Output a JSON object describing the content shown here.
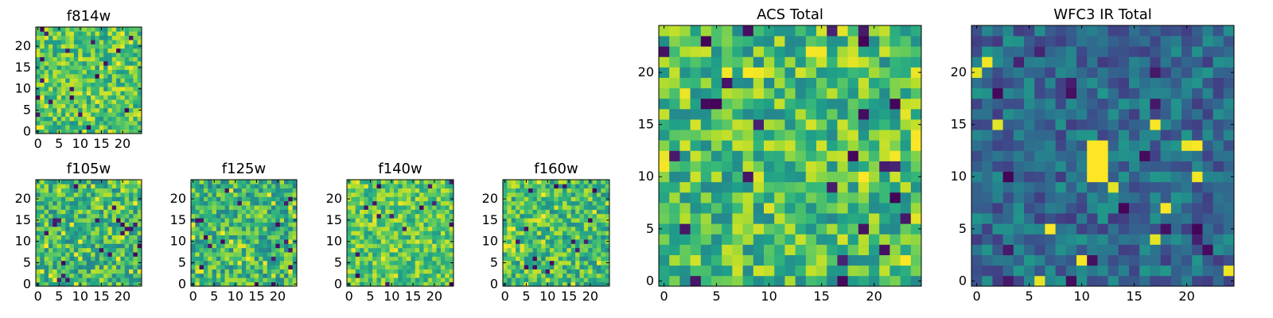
{
  "chart_data": [
    {
      "type": "heatmap",
      "title": "f814w",
      "grid_size": [
        25,
        25
      ],
      "xlim": [
        0,
        24
      ],
      "ylim": [
        0,
        24
      ],
      "xticks": [
        0,
        5,
        10,
        15,
        20
      ],
      "yticks": [
        0,
        5,
        10,
        15,
        20
      ],
      "colormap": "viridis",
      "value_range": [
        0,
        1
      ],
      "character": "fine pixel noise, mostly high (green-yellow) values with sparse dark pixels",
      "noise_seed": 11,
      "base": 0.72,
      "spread": 0.22
    },
    {
      "type": "heatmap",
      "title": "f105w",
      "grid_size": [
        25,
        25
      ],
      "xlim": [
        0,
        24
      ],
      "ylim": [
        0,
        24
      ],
      "xticks": [
        0,
        5,
        10,
        15,
        20
      ],
      "yticks": [
        0,
        5,
        10,
        15,
        20
      ],
      "colormap": "viridis",
      "value_range": [
        0,
        1
      ],
      "character": "smooth mottled noise, green-yellow with teal patches",
      "noise_seed": 23,
      "base": 0.68,
      "spread": 0.24
    },
    {
      "type": "heatmap",
      "title": "f125w",
      "grid_size": [
        25,
        25
      ],
      "xlim": [
        0,
        24
      ],
      "ylim": [
        0,
        24
      ],
      "xticks": [
        0,
        5,
        10,
        15,
        20
      ],
      "yticks": [
        0,
        5,
        10,
        15,
        20
      ],
      "colormap": "viridis",
      "value_range": [
        0,
        1
      ],
      "character": "smooth mottled noise with a dark vertical streak near x=8, y=12-17",
      "noise_seed": 37,
      "base": 0.66,
      "spread": 0.24
    },
    {
      "type": "heatmap",
      "title": "f140w",
      "grid_size": [
        25,
        25
      ],
      "xlim": [
        0,
        24
      ],
      "ylim": [
        0,
        24
      ],
      "xticks": [
        0,
        5,
        10,
        15,
        20
      ],
      "yticks": [
        0,
        5,
        10,
        15,
        20
      ],
      "colormap": "viridis",
      "value_range": [
        0,
        1
      ],
      "character": "smooth, mostly bright green-yellow with a few dark spots",
      "noise_seed": 41,
      "base": 0.74,
      "spread": 0.2
    },
    {
      "type": "heatmap",
      "title": "f160w",
      "grid_size": [
        25,
        25
      ],
      "xlim": [
        0,
        24
      ],
      "ylim": [
        0,
        24
      ],
      "xticks": [
        0,
        5,
        10,
        15,
        20
      ],
      "yticks": [
        0,
        5,
        10,
        15,
        20
      ],
      "colormap": "viridis",
      "value_range": [
        0,
        1
      ],
      "character": "mottled green-yellow noise with teal and dark blue spots",
      "noise_seed": 53,
      "base": 0.7,
      "spread": 0.24
    },
    {
      "type": "heatmap",
      "title": "ACS Total",
      "grid_size": [
        25,
        25
      ],
      "xlim": [
        0,
        24
      ],
      "ylim": [
        0,
        24
      ],
      "xticks": [
        0,
        5,
        10,
        15,
        20
      ],
      "yticks": [
        0,
        5,
        10,
        15,
        20
      ],
      "colormap": "viridis",
      "value_range": [
        0,
        1
      ],
      "character": "pixel noise, mostly green-yellow with scattered dark purple pixels",
      "noise_seed": 67,
      "base": 0.7,
      "spread": 0.24
    },
    {
      "type": "heatmap",
      "title": "WFC3 IR Total",
      "grid_size": [
        25,
        25
      ],
      "xlim": [
        0,
        24
      ],
      "ylim": [
        0,
        24
      ],
      "xticks": [
        0,
        5,
        10,
        15,
        20
      ],
      "yticks": [
        0,
        5,
        10,
        15,
        20
      ],
      "colormap": "viridis",
      "value_range": [
        0,
        1
      ],
      "character": "low (blue-teal) background noise with a bright yellow source at x=11-12, y=10-13",
      "noise_seed": 79,
      "base": 0.35,
      "spread": 0.18,
      "bright_region": {
        "x": [
          11,
          12
        ],
        "y": [
          10,
          13
        ],
        "value": 1.0
      }
    }
  ]
}
